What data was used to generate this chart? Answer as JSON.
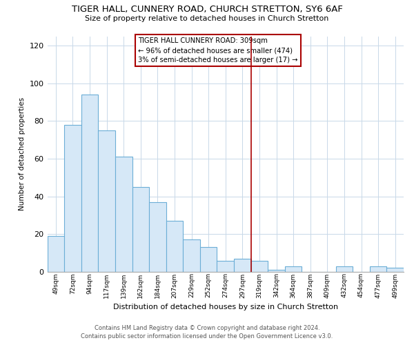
{
  "title": "TIGER HALL, CUNNERY ROAD, CHURCH STRETTON, SY6 6AF",
  "subtitle": "Size of property relative to detached houses in Church Stretton",
  "xlabel": "Distribution of detached houses by size in Church Stretton",
  "ylabel": "Number of detached properties",
  "bar_labels": [
    "49sqm",
    "72sqm",
    "94sqm",
    "117sqm",
    "139sqm",
    "162sqm",
    "184sqm",
    "207sqm",
    "229sqm",
    "252sqm",
    "274sqm",
    "297sqm",
    "319sqm",
    "342sqm",
    "364sqm",
    "387sqm",
    "409sqm",
    "432sqm",
    "454sqm",
    "477sqm",
    "499sqm"
  ],
  "bar_values": [
    19,
    78,
    94,
    75,
    61,
    45,
    37,
    27,
    17,
    13,
    6,
    7,
    6,
    1,
    3,
    0,
    0,
    3,
    0,
    3,
    2
  ],
  "bar_color": "#d6e8f7",
  "bar_edge_color": "#6baed6",
  "vline_x": 11.5,
  "vline_color": "#aa0000",
  "ylim": [
    0,
    125
  ],
  "yticks": [
    0,
    20,
    40,
    60,
    80,
    100,
    120
  ],
  "annotation_title": "TIGER HALL CUNNERY ROAD: 309sqm",
  "annotation_line1": "← 96% of detached houses are smaller (474)",
  "annotation_line2": "3% of semi-detached houses are larger (17) →",
  "annotation_box_color": "#ffffff",
  "annotation_box_edge": "#aa0000",
  "footer_line1": "Contains HM Land Registry data © Crown copyright and database right 2024.",
  "footer_line2": "Contains public sector information licensed under the Open Government Licence v3.0.",
  "background_color": "#ffffff",
  "grid_color": "#c8d8e8"
}
